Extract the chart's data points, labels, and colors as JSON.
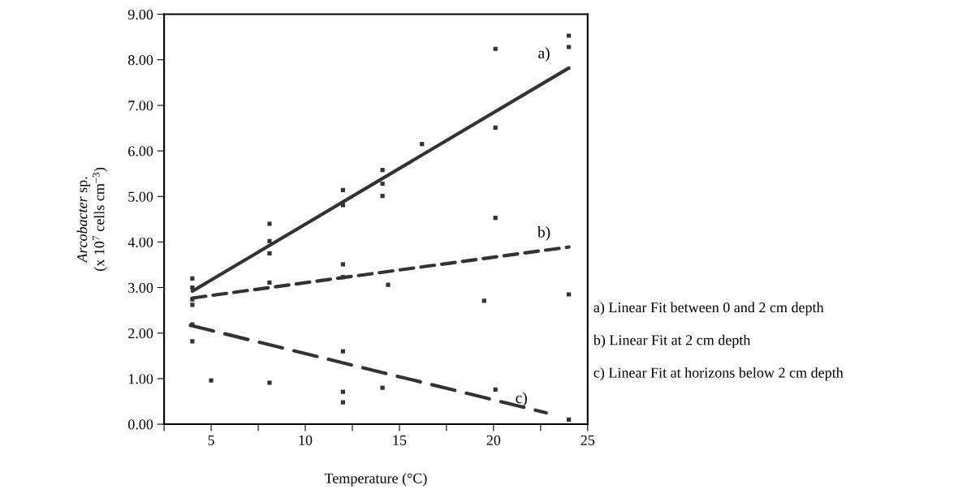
{
  "chart_data": {
    "type": "scatter",
    "xlabel": "Temperature (°C)",
    "ylabel": "Arcobacter sp.\n(x 10$^{7}$ cells cm$^{−3}$)",
    "xlim": [
      2.5,
      25
    ],
    "ylim": [
      0,
      9
    ],
    "xticks": [
      {
        "value": 2.5,
        "label": null
      },
      5,
      {
        "value": 7.5,
        "label": null
      },
      10,
      {
        "value": 12.5,
        "label": null
      },
      15,
      {
        "value": 17.5,
        "label": null
      },
      20,
      {
        "value": 22.5,
        "label": null
      },
      25
    ],
    "yticks": [
      {
        "value": 0,
        "label": "0.00"
      },
      {
        "value": 1,
        "label": "1.00"
      },
      {
        "value": 2,
        "label": "2.00"
      },
      {
        "value": 3,
        "label": "3.00"
      },
      {
        "value": 4,
        "label": "4.00"
      },
      {
        "value": 5,
        "label": "5.00"
      },
      {
        "value": 6,
        "label": "6.00"
      },
      {
        "value": 7,
        "label": "7.00"
      },
      {
        "value": 8,
        "label": "8.00"
      },
      {
        "value": 9,
        "label": "9.00"
      }
    ],
    "grid": false,
    "legend": false,
    "marker": "square",
    "series": [
      {
        "color": "#333333",
        "x": [
          24,
          24,
          20.1,
          20.1,
          16.2,
          14.1,
          14.1,
          14.1,
          12,
          12,
          20.1,
          8.1,
          8.1,
          8.1,
          4,
          4,
          4,
          4,
          12,
          12,
          8.1,
          14.4,
          24,
          19.5,
          4,
          4,
          12,
          5,
          8.1,
          12,
          12,
          14.1,
          20.1,
          24
        ],
        "values": [
          8.53,
          8.28,
          8.24,
          6.51,
          6.15,
          5.58,
          5.28,
          5.01,
          5.14,
          4.81,
          4.53,
          4.4,
          4.02,
          3.75,
          3.2,
          3.0,
          2.74,
          2.62,
          3.51,
          3.23,
          3.11,
          3.06,
          2.85,
          2.71,
          2.19,
          1.82,
          1.6,
          0.96,
          0.91,
          0.71,
          0.48,
          0.8,
          0.76,
          0.1
        ]
      },
      {
        "type": "line",
        "color": "#333333",
        "line_style": "solid",
        "marker": "none",
        "x": [
          4,
          24
        ],
        "values": [
          2.92,
          7.82
        ]
      },
      {
        "type": "line",
        "color": "#333333",
        "line_style": "dashed",
        "marker": "none",
        "x": [
          4,
          24
        ],
        "values": [
          2.77,
          3.89
        ]
      },
      {
        "type": "line",
        "color": "#333333",
        "line_style": "dashed",
        "marker": "none",
        "x": [
          3.9,
          22.8
        ],
        "values": [
          2.17,
          0.25
        ]
      }
    ],
    "annotations": [
      "a)",
      "b)",
      "c)",
      "a) Linear Fit between 0 and 2 cm depth",
      "b) Linear Fit at 2 cm depth",
      "c) Linear Fit at horizons below 2 cm depth"
    ]
  }
}
